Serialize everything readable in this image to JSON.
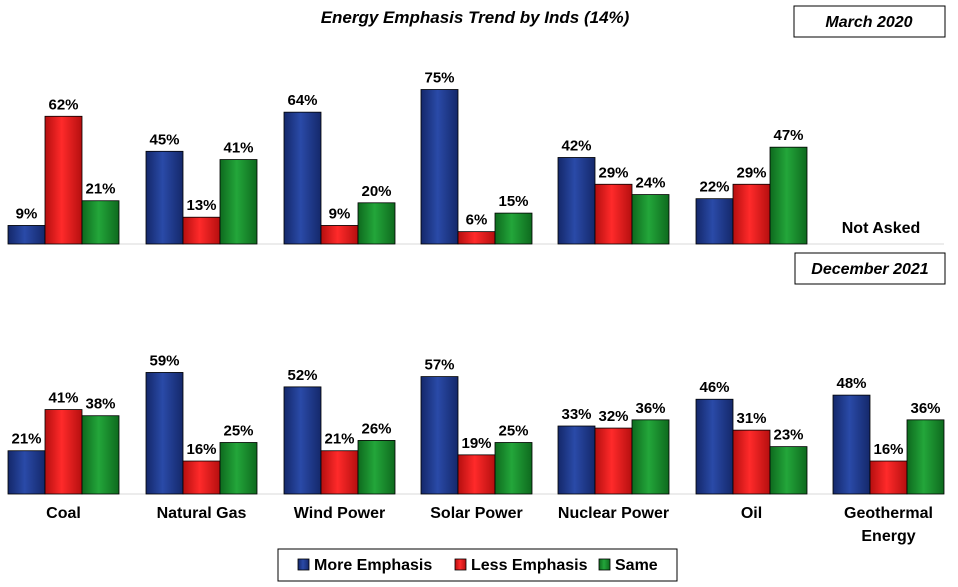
{
  "chart_data": {
    "type": "bar",
    "title": "Energy Emphasis Trend by Inds (14%)",
    "categories": [
      "Coal",
      "Natural Gas",
      "Wind Power",
      "Solar Power",
      "Nuclear Power",
      "Oil",
      "Geothermal Energy"
    ],
    "category_lines": [
      [
        "Coal"
      ],
      [
        "Natural Gas"
      ],
      [
        "Wind Power"
      ],
      [
        "Solar Power"
      ],
      [
        "Nuclear Power"
      ],
      [
        "Oil"
      ],
      [
        "Geothermal",
        "Energy"
      ]
    ],
    "legend": {
      "position": "bottom",
      "entries": [
        "More Emphasis",
        "Less Emphasis",
        "Same"
      ]
    },
    "colors": {
      "More Emphasis": "#1f3a8a",
      "Less Emphasis": "#e11b1b",
      "Same": "#168a2a"
    },
    "ylim": [
      0,
      100
    ],
    "grid": false,
    "panels": [
      {
        "label": "March 2020",
        "note": "Not Asked",
        "series": [
          {
            "name": "More Emphasis",
            "values": [
              9,
              45,
              64,
              75,
              42,
              22,
              null
            ]
          },
          {
            "name": "Less Emphasis",
            "values": [
              62,
              13,
              9,
              6,
              29,
              29,
              null
            ]
          },
          {
            "name": "Same",
            "values": [
              21,
              41,
              20,
              15,
              24,
              47,
              null
            ]
          }
        ],
        "data_labels": [
          [
            "9%",
            "45%",
            "64%",
            "75%",
            "42%",
            "22%",
            ""
          ],
          [
            "62%",
            "13%",
            "9%",
            "6%",
            "29%",
            "29%",
            ""
          ],
          [
            "21%",
            "41%",
            "20%",
            "15%",
            "24%",
            "47%",
            ""
          ]
        ]
      },
      {
        "label": "December 2021",
        "note": "",
        "series": [
          {
            "name": "More Emphasis",
            "values": [
              21,
              59,
              52,
              57,
              33,
              46,
              48
            ]
          },
          {
            "name": "Less Emphasis",
            "values": [
              41,
              16,
              21,
              19,
              32,
              31,
              16
            ]
          },
          {
            "name": "Same",
            "values": [
              38,
              25,
              26,
              25,
              36,
              23,
              36
            ]
          }
        ],
        "data_labels": [
          [
            "21%",
            "59%",
            "52%",
            "57%",
            "33%",
            "46%",
            "48%"
          ],
          [
            "41%",
            "16%",
            "21%",
            "19%",
            "32%",
            "31%",
            "16%"
          ],
          [
            "38%",
            "25%",
            "26%",
            "25%",
            "36%",
            "23%",
            "36%"
          ]
        ]
      }
    ]
  }
}
